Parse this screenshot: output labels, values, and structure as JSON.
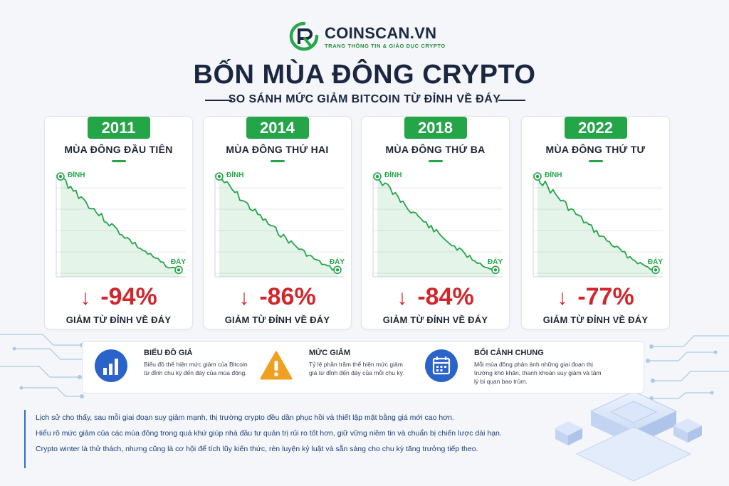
{
  "brand": {
    "name": "COINSCAN.VN",
    "tagline": "TRANG THÔNG TIN & GIÁO DỤC CRYPTO"
  },
  "title": "BỐN MÙA ĐÔNG CRYPTO",
  "subtitle": "SO SÁNH MỨC GIẢM BITCOIN TỪ ĐỈNH VỀ ĐÁY",
  "colors": {
    "accent_green": "#23a548",
    "drop_red": "#d3262c",
    "navy": "#1b2640",
    "info_blue": "#2a6fd6",
    "warning_orange": "#f0a020"
  },
  "chart_labels": {
    "peak": "ĐỈNH",
    "bottom": "ĐÁY"
  },
  "cards": [
    {
      "year": "2011",
      "season": "MÙA ĐÔNG ĐẦU TIÊN",
      "drop": "-94%",
      "drop_label": "GIẢM TỪ ĐỈNH VỀ ĐÁY"
    },
    {
      "year": "2014",
      "season": "MÙA ĐÔNG THỨ HAI",
      "drop": "-86%",
      "drop_label": "GIẢM TỪ ĐỈNH VỀ ĐÁY"
    },
    {
      "year": "2018",
      "season": "MÙA ĐÔNG THỨ BA",
      "drop": "-84%",
      "drop_label": "GIẢM TỪ ĐỈNH VỀ ĐÁY"
    },
    {
      "year": "2022",
      "season": "MÙA ĐÔNG THỨ TƯ",
      "drop": "-77%",
      "drop_label": "GIẢM TỪ ĐỈNH VỀ ĐÁY"
    }
  ],
  "info": [
    {
      "icon": "bar-chart-icon",
      "title": "BIỂU ĐỒ GIÁ",
      "text": "Biểu đồ thể hiện mức giảm của Bitcoin từ đỉnh chu kỳ đến đáy của mùa đông."
    },
    {
      "icon": "warning-icon",
      "title": "MỨC GIẢM",
      "text": "Tỷ lệ phần trăm thể hiện mức giảm giá từ đỉnh đến đáy của mỗi chu kỳ."
    },
    {
      "icon": "calendar-icon",
      "title": "BỐI CẢNH CHUNG",
      "text": "Mỗi mùa đông phản ánh những giai đoạn thị trường khó khăn, thanh khoản suy giảm và tâm lý bi quan bao trùm."
    }
  ],
  "footer": [
    "Lịch sử cho thấy, sau mỗi giai đoạn suy giảm mạnh, thị trường crypto đều dần phục hồi và thiết lập mặt bằng giá mới cao hơn.",
    "Hiểu rõ mức giảm của các mùa đông trong quá khứ giúp nhà đầu tư quản trị rủi ro tốt hơn, giữ vững niềm tin và chuẩn bị chiến lược dài hạn.",
    "Crypto winter là thử thách, nhưng cũng là cơ hội để tích lũy kiến thức, rèn luyện kỷ luật và sẵn sàng cho chu kỳ tăng trưởng tiếp theo."
  ]
}
